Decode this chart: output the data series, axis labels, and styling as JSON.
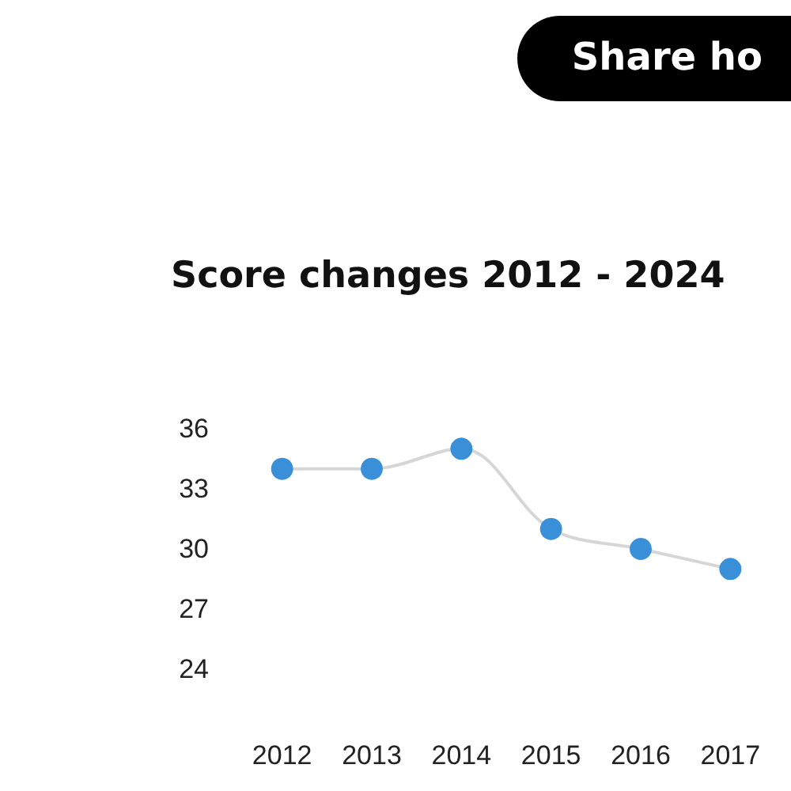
{
  "chart_data": {
    "type": "line",
    "title": "Score changes 2012 - 2024",
    "categories": [
      "2012",
      "2013",
      "2014",
      "2015",
      "2016",
      "2017"
    ],
    "series": [
      {
        "color": "#3a8fd9",
        "values": [
          34,
          34,
          35,
          31,
          30,
          29
        ]
      }
    ],
    "ylim": [
      24,
      36
    ],
    "yticks": [
      24,
      27,
      30,
      33,
      36
    ],
    "marker": "circle",
    "annotations": [
      "Share ho"
    ]
  }
}
